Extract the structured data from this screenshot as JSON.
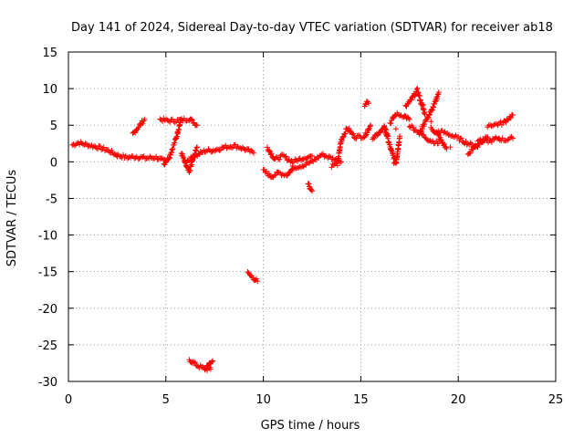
{
  "chart_data": {
    "type": "scatter",
    "title": "Day 141 of 2024, Sidereal Day-to-day VTEC variation (SDTVAR) for receiver ab18",
    "xlabel": "GPS time / hours",
    "ylabel": "SDTVAR / TECUs",
    "xlim": [
      0,
      25
    ],
    "ylim": [
      -30,
      15
    ],
    "xticks": [
      0,
      5,
      10,
      15,
      20,
      25
    ],
    "yticks": [
      -30,
      -25,
      -20,
      -15,
      -10,
      -5,
      0,
      5,
      10,
      15
    ],
    "grid": true,
    "marker": "+",
    "series": [
      {
        "name": "SDTVAR",
        "color": "#ff0000",
        "segments": [
          {
            "x0": 0.2,
            "x1": 2.5,
            "points": [
              [
                0.2,
                2.3
              ],
              [
                0.5,
                2.6
              ],
              [
                1.0,
                2.3
              ],
              [
                1.5,
                2.0
              ],
              [
                2.0,
                1.6
              ],
              [
                2.5,
                0.9
              ]
            ]
          },
          {
            "x0": 2.5,
            "x1": 5.0,
            "points": [
              [
                2.5,
                0.9
              ],
              [
                3.0,
                0.6
              ],
              [
                3.5,
                0.7
              ],
              [
                4.0,
                0.5
              ],
              [
                4.5,
                0.6
              ],
              [
                5.0,
                0.0
              ]
            ]
          },
          {
            "x0": 3.3,
            "x1": 3.9,
            "points": [
              [
                3.3,
                3.8
              ],
              [
                3.6,
                4.8
              ],
              [
                3.9,
                5.8
              ]
            ]
          },
          {
            "x0": 4.7,
            "x1": 6.6,
            "points": [
              [
                4.7,
                5.8
              ],
              [
                5.2,
                5.6
              ],
              [
                5.8,
                5.7
              ],
              [
                6.2,
                5.9
              ],
              [
                6.6,
                5.0
              ]
            ]
          },
          {
            "x0": 4.9,
            "x1": 5.8,
            "points": [
              [
                4.9,
                -0.3
              ],
              [
                5.2,
                0.8
              ],
              [
                5.5,
                3.0
              ],
              [
                5.7,
                5.0
              ],
              [
                5.8,
                5.8
              ]
            ]
          },
          {
            "x0": 5.8,
            "x1": 6.6,
            "points": [
              [
                5.8,
                1.2
              ],
              [
                6.0,
                -0.3
              ],
              [
                6.2,
                -1.5
              ],
              [
                6.4,
                0.5
              ],
              [
                6.6,
                2.0
              ]
            ]
          },
          {
            "x0": 6.0,
            "x1": 9.5,
            "points": [
              [
                6.0,
                0.0
              ],
              [
                6.5,
                0.8
              ],
              [
                7.0,
                1.5
              ],
              [
                7.5,
                1.6
              ],
              [
                8.0,
                2.0
              ],
              [
                8.5,
                2.2
              ],
              [
                9.0,
                1.8
              ],
              [
                9.5,
                1.2
              ]
            ]
          },
          {
            "x0": 6.2,
            "x1": 7.3,
            "points": [
              [
                6.2,
                -27.0
              ],
              [
                6.6,
                -27.8
              ],
              [
                7.0,
                -28.3
              ],
              [
                7.3,
                -28.3
              ]
            ]
          },
          {
            "x0": 7.1,
            "x1": 7.4,
            "points": [
              [
                7.1,
                -27.9
              ],
              [
                7.25,
                -27.5
              ],
              [
                7.4,
                -27.2
              ]
            ]
          },
          {
            "x0": 9.2,
            "x1": 9.7,
            "points": [
              [
                9.2,
                -15.2
              ],
              [
                9.45,
                -15.8
              ],
              [
                9.7,
                -16.3
              ]
            ]
          },
          {
            "x0": 10.0,
            "x1": 11.5,
            "points": [
              [
                10.0,
                -1.2
              ],
              [
                10.4,
                -2.0
              ],
              [
                10.8,
                -1.5
              ],
              [
                11.2,
                -1.8
              ],
              [
                11.5,
                -1.0
              ]
            ]
          },
          {
            "x0": 10.2,
            "x1": 12.5,
            "points": [
              [
                10.2,
                2.0
              ],
              [
                10.6,
                0.3
              ],
              [
                11.0,
                0.8
              ],
              [
                11.5,
                0.0
              ],
              [
                12.0,
                0.5
              ],
              [
                12.5,
                0.8
              ]
            ]
          },
          {
            "x0": 11.5,
            "x1": 14.0,
            "points": [
              [
                11.5,
                -0.8
              ],
              [
                12.0,
                -0.5
              ],
              [
                12.5,
                0.0
              ],
              [
                13.0,
                1.0
              ],
              [
                13.5,
                0.5
              ],
              [
                14.0,
                0.0
              ]
            ]
          },
          {
            "x0": 12.3,
            "x1": 12.6,
            "points": [
              [
                12.3,
                -2.8
              ],
              [
                12.4,
                -3.6
              ],
              [
                12.5,
                -4.0
              ]
            ]
          },
          {
            "x0": 13.5,
            "x1": 15.5,
            "points": [
              [
                13.5,
                -0.5
              ],
              [
                13.8,
                -0.3
              ],
              [
                14.0,
                3.0
              ],
              [
                14.3,
                4.6
              ],
              [
                14.7,
                3.4
              ],
              [
                15.2,
                3.5
              ],
              [
                15.5,
                5.0
              ]
            ]
          },
          {
            "x0": 15.2,
            "x1": 15.4,
            "points": [
              [
                15.2,
                7.8
              ],
              [
                15.3,
                8.2
              ],
              [
                15.4,
                8.0
              ]
            ]
          },
          {
            "x0": 15.6,
            "x1": 16.4,
            "points": [
              [
                15.6,
                3.0
              ],
              [
                15.9,
                4.0
              ],
              [
                16.2,
                4.5
              ],
              [
                16.4,
                3.5
              ]
            ]
          },
          {
            "x0": 16.2,
            "x1": 17.0,
            "points": [
              [
                16.2,
                5.0
              ],
              [
                16.5,
                2.0
              ],
              [
                16.8,
                -0.2
              ],
              [
                17.0,
                3.5
              ]
            ]
          },
          {
            "x0": 16.5,
            "x1": 17.5,
            "points": [
              [
                16.5,
                5.3
              ],
              [
                16.8,
                6.5
              ],
              [
                17.2,
                6.3
              ],
              [
                17.5,
                5.8
              ]
            ]
          },
          {
            "x0": 17.3,
            "x1": 18.3,
            "points": [
              [
                17.3,
                7.5
              ],
              [
                17.6,
                8.5
              ],
              [
                17.9,
                9.8
              ],
              [
                18.1,
                8.0
              ],
              [
                18.3,
                6.5
              ]
            ]
          },
          {
            "x0": 17.5,
            "x1": 19.0,
            "points": [
              [
                17.5,
                5.0
              ],
              [
                18.0,
                4.0
              ],
              [
                18.5,
                3.0
              ],
              [
                19.0,
                2.5
              ]
            ]
          },
          {
            "x0": 18.0,
            "x1": 19.0,
            "points": [
              [
                18.0,
                3.8
              ],
              [
                18.3,
                5.5
              ],
              [
                18.6,
                6.8
              ],
              [
                18.8,
                8.0
              ],
              [
                19.0,
                9.5
              ]
            ]
          },
          {
            "x0": 18.6,
            "x1": 19.4,
            "points": [
              [
                18.6,
                4.5
              ],
              [
                18.9,
                4.0
              ],
              [
                19.1,
                3.0
              ],
              [
                19.4,
                1.8
              ]
            ]
          },
          {
            "x0": 19.0,
            "x1": 21.0,
            "points": [
              [
                19.0,
                4.2
              ],
              [
                19.5,
                3.8
              ],
              [
                20.0,
                3.2
              ],
              [
                20.5,
                2.5
              ],
              [
                21.0,
                2.0
              ]
            ]
          },
          {
            "x0": 20.5,
            "x1": 21.5,
            "points": [
              [
                20.5,
                1.0
              ],
              [
                20.8,
                2.0
              ],
              [
                21.2,
                2.8
              ],
              [
                21.5,
                3.4
              ]
            ]
          },
          {
            "x0": 21.0,
            "x1": 22.8,
            "points": [
              [
                21.0,
                3.0
              ],
              [
                21.6,
                2.8
              ],
              [
                22.0,
                3.2
              ],
              [
                22.4,
                3.0
              ],
              [
                22.8,
                3.2
              ]
            ]
          },
          {
            "x0": 21.5,
            "x1": 22.8,
            "points": [
              [
                21.5,
                5.0
              ],
              [
                21.9,
                5.1
              ],
              [
                22.3,
                5.3
              ],
              [
                22.6,
                6.0
              ],
              [
                22.8,
                6.4
              ]
            ]
          }
        ],
        "isolated": [
          [
            16.0,
            4.0
          ],
          [
            16.7,
            -0.2
          ],
          [
            16.8,
            4.5
          ],
          [
            18.2,
            7.8
          ],
          [
            18.6,
            5.5
          ],
          [
            19.6,
            2.0
          ],
          [
            22.1,
            3.2
          ]
        ]
      }
    ]
  }
}
